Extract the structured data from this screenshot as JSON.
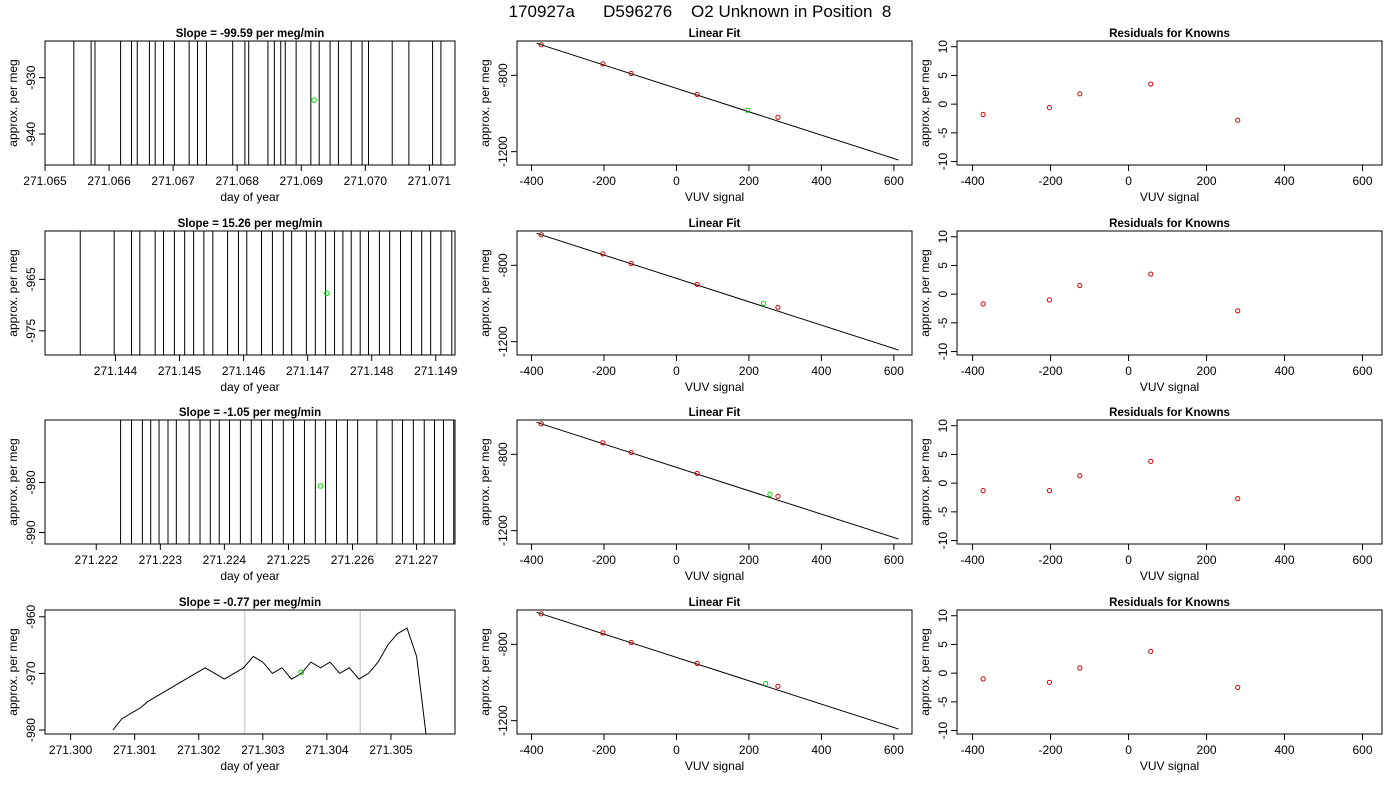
{
  "title": "170927a      D596276    O2 Unknown in Position  8",
  "colors": {
    "line": "#000000",
    "known_points": "#cc0000",
    "unknown_point": "#00dd00",
    "marker_lines": "#bbbbbb"
  },
  "chart_data": [
    {
      "type": "line",
      "row": 0,
      "panel": "time-series",
      "title": "Slope =  -99.59  per meg/min",
      "xlabel": "day of year",
      "ylabel": "approx. per meg",
      "xlim": [
        271.065,
        271.0714
      ],
      "ylim": [
        -945.5,
        -923.5
      ],
      "xticks": [
        271.065,
        271.066,
        271.067,
        271.068,
        271.069,
        271.07,
        271.071
      ],
      "xtick_labels": [
        "271.065",
        "271.066",
        "271.067",
        "271.068",
        "271.069",
        "271.070",
        "271.071"
      ],
      "yticks": [
        -940,
        -930
      ],
      "ytick_labels": [
        "-940",
        "-930"
      ],
      "signal": "vertical-spikes",
      "spike_x": [
        271.06545,
        271.06572,
        271.06578,
        271.06618,
        271.06635,
        271.06644,
        271.06663,
        271.06672,
        271.06685,
        271.06702,
        271.06725,
        271.06738,
        271.06752,
        271.06793,
        271.06812,
        271.06818,
        271.06848,
        271.06858,
        271.06868,
        271.06875,
        271.06892,
        271.06915,
        271.06928,
        271.06945,
        271.06958,
        271.06978,
        271.06995,
        271.07005,
        271.07042,
        271.07068,
        271.07105,
        271.07118
      ],
      "unknown_point": {
        "x": 271.0692,
        "y": -934.0
      }
    },
    {
      "type": "scatter",
      "row": 0,
      "panel": "linear-fit",
      "title": "Linear Fit",
      "xlabel": "VUV signal",
      "ylabel": "approx. per meg",
      "xlim": [
        -440,
        650
      ],
      "ylim": [
        -1270,
        -620
      ],
      "xticks": [
        -400,
        -200,
        0,
        200,
        400,
        600
      ],
      "xtick_labels": [
        "-400",
        "-200",
        "0",
        "200",
        "400",
        "600"
      ],
      "yticks": [
        -1200,
        -800
      ],
      "ytick_labels": [
        "-1200",
        "-800"
      ],
      "known_x": [
        -373,
        -203,
        -125,
        57,
        280
      ],
      "known_y": [
        -640,
        -740,
        -790,
        -900,
        -1020
      ],
      "unknown_point": {
        "x": 196,
        "y": -983
      },
      "fit_line": {
        "x": [
          -386,
          613
        ],
        "y": [
          -632,
          -1244
        ]
      }
    },
    {
      "type": "scatter",
      "row": 0,
      "panel": "residuals",
      "title": "Residuals for Knowns",
      "xlabel": "VUV signal",
      "ylabel": "approx. per meg",
      "xlim": [
        -440,
        650
      ],
      "ylim": [
        -10.6,
        11
      ],
      "xticks": [
        -400,
        -200,
        0,
        200,
        400,
        600
      ],
      "xtick_labels": [
        "-400",
        "-200",
        "0",
        "200",
        "400",
        "600"
      ],
      "yticks": [
        -10,
        -5,
        0,
        5,
        10
      ],
      "ytick_labels": [
        "-10",
        "-5",
        "0",
        "5",
        "10"
      ],
      "x": [
        -373,
        -203,
        -125,
        57,
        280
      ],
      "y": [
        -1.8,
        -0.6,
        1.8,
        3.5,
        -2.8
      ]
    },
    {
      "type": "line",
      "row": 1,
      "panel": "time-series",
      "title": "Slope =  15.26  per meg/min",
      "xlabel": "day of year",
      "ylabel": "approx. per meg",
      "xlim": [
        271.1429,
        271.1493
      ],
      "ylim": [
        -979.7,
        -955.6
      ],
      "xticks": [
        271.144,
        271.145,
        271.146,
        271.147,
        271.148,
        271.149
      ],
      "xtick_labels": [
        "271.144",
        "271.145",
        "271.146",
        "271.147",
        "271.148",
        "271.149"
      ],
      "yticks": [
        -975,
        -965
      ],
      "ytick_labels": [
        "-975",
        "-965"
      ],
      "signal": "vertical-spikes",
      "spike_x": [
        271.14345,
        271.14398,
        271.14425,
        271.14438,
        271.14462,
        271.14475,
        271.14492,
        271.14508,
        271.14522,
        271.14538,
        271.14552,
        271.14575,
        271.14592,
        271.14605,
        271.14628,
        271.14645,
        271.14662,
        271.14675,
        271.14698,
        271.14712,
        271.14728,
        271.14742,
        271.14755,
        271.14768,
        271.14782,
        271.14795,
        271.14812,
        271.14828,
        271.14845,
        271.14862,
        271.14878,
        271.14892,
        271.14908,
        271.14925,
        271.14942
      ],
      "unknown_point": {
        "x": 271.1473,
        "y": -967.7
      }
    },
    {
      "type": "scatter",
      "row": 1,
      "panel": "linear-fit",
      "title": "Linear Fit",
      "xlabel": "VUV signal",
      "ylabel": "approx. per meg",
      "xlim": [
        -440,
        650
      ],
      "ylim": [
        -1270,
        -620
      ],
      "xticks": [
        -400,
        -200,
        0,
        200,
        400,
        600
      ],
      "xtick_labels": [
        "-400",
        "-200",
        "0",
        "200",
        "400",
        "600"
      ],
      "yticks": [
        -1200,
        -800
      ],
      "ytick_labels": [
        "-1200",
        "-800"
      ],
      "known_x": [
        -373,
        -203,
        -125,
        57,
        280
      ],
      "known_y": [
        -640,
        -740,
        -790,
        -900,
        -1020
      ],
      "unknown_point": {
        "x": 240,
        "y": -1000
      },
      "fit_line": {
        "x": [
          -386,
          613
        ],
        "y": [
          -632,
          -1244
        ]
      }
    },
    {
      "type": "scatter",
      "row": 1,
      "panel": "residuals",
      "title": "Residuals for Knowns",
      "xlabel": "VUV signal",
      "ylabel": "approx. per meg",
      "xlim": [
        -440,
        650
      ],
      "ylim": [
        -10.6,
        11
      ],
      "xticks": [
        -400,
        -200,
        0,
        200,
        400,
        600
      ],
      "xtick_labels": [
        "-400",
        "-200",
        "0",
        "200",
        "400",
        "600"
      ],
      "yticks": [
        -10,
        -5,
        0,
        5,
        10
      ],
      "ytick_labels": [
        "-10",
        "-5",
        "0",
        "5",
        "10"
      ],
      "x": [
        -373,
        -203,
        -125,
        57,
        280
      ],
      "y": [
        -1.7,
        -1.0,
        1.5,
        3.5,
        -2.9
      ]
    },
    {
      "type": "line",
      "row": 2,
      "panel": "time-series",
      "title": "Slope =  -1.05  per meg/min",
      "xlabel": "day of year",
      "ylabel": "approx. per meg",
      "xlim": [
        271.2212,
        271.2276
      ],
      "ylim": [
        -992.3,
        -967.5
      ],
      "xticks": [
        271.222,
        271.223,
        271.224,
        271.225,
        271.226,
        271.227
      ],
      "xtick_labels": [
        "271.222",
        "271.223",
        "271.224",
        "271.225",
        "271.226",
        "271.227"
      ],
      "yticks": [
        -990,
        -980
      ],
      "ytick_labels": [
        "-990",
        "-980"
      ],
      "signal": "vertical-spikes",
      "spike_x": [
        271.22238,
        271.22255,
        271.22272,
        271.22285,
        271.22298,
        271.22312,
        271.22325,
        271.22345,
        271.22362,
        271.22378,
        271.22392,
        271.22408,
        271.22425,
        271.22442,
        271.22458,
        271.22475,
        271.22492,
        271.22508,
        271.22525,
        271.22542,
        271.22558,
        271.22575,
        271.22592,
        271.22608,
        271.22638,
        271.22662,
        271.22678,
        271.22695,
        271.22712,
        271.22728,
        271.22742,
        271.22758
      ],
      "unknown_point": {
        "x": 271.2255,
        "y": -980.7
      }
    },
    {
      "type": "scatter",
      "row": 2,
      "panel": "linear-fit",
      "title": "Linear Fit",
      "xlabel": "VUV signal",
      "ylabel": "approx. per meg",
      "xlim": [
        -440,
        650
      ],
      "ylim": [
        -1270,
        -620
      ],
      "xticks": [
        -400,
        -200,
        0,
        200,
        400,
        600
      ],
      "xtick_labels": [
        "-400",
        "-200",
        "0",
        "200",
        "400",
        "600"
      ],
      "yticks": [
        -1200,
        -800
      ],
      "ytick_labels": [
        "-1200",
        "-800"
      ],
      "known_x": [
        -373,
        -203,
        -125,
        57,
        280
      ],
      "known_y": [
        -640,
        -740,
        -790,
        -900,
        -1020
      ],
      "unknown_point": {
        "x": 258,
        "y": -1010
      },
      "fit_line": {
        "x": [
          -386,
          613
        ],
        "y": [
          -632,
          -1244
        ]
      }
    },
    {
      "type": "scatter",
      "row": 2,
      "panel": "residuals",
      "title": "Residuals for Knowns",
      "xlabel": "VUV signal",
      "ylabel": "approx. per meg",
      "xlim": [
        -440,
        650
      ],
      "ylim": [
        -10.6,
        11
      ],
      "xticks": [
        -400,
        -200,
        0,
        200,
        400,
        600
      ],
      "xtick_labels": [
        "-400",
        "-200",
        "0",
        "200",
        "400",
        "600"
      ],
      "yticks": [
        -10,
        -5,
        0,
        5,
        10
      ],
      "ytick_labels": [
        "-10",
        "-5",
        "0",
        "5",
        "10"
      ],
      "x": [
        -373,
        -203,
        -125,
        57,
        280
      ],
      "y": [
        -1.3,
        -1.3,
        1.3,
        3.8,
        -2.7
      ]
    },
    {
      "type": "line",
      "row": 3,
      "panel": "time-series",
      "title": "Slope =  -0.77  per meg/min",
      "xlabel": "day of year",
      "ylabel": "approx. per meg",
      "xlim": [
        271.2996,
        271.306
      ],
      "ylim": [
        -980.7,
        -958.8
      ],
      "xticks": [
        271.3,
        271.301,
        271.302,
        271.303,
        271.304,
        271.305
      ],
      "xtick_labels": [
        "271.300",
        "271.301",
        "271.302",
        "271.303",
        "271.304",
        "271.305"
      ],
      "yticks": [
        -980,
        -970,
        -960
      ],
      "ytick_labels": [
        "-980",
        "-970",
        "-960"
      ],
      "signal": "continuous",
      "series_x": [
        271.30066,
        271.3008,
        271.30095,
        271.3011,
        271.3012,
        271.30135,
        271.3015,
        271.30165,
        271.3018,
        271.30195,
        271.3021,
        271.30225,
        271.3024,
        271.30255,
        271.3027,
        271.30285,
        271.303,
        271.30315,
        271.3033,
        271.30345,
        271.3036,
        271.30375,
        271.3039,
        271.30405,
        271.3042,
        271.30435,
        271.3045,
        271.30465,
        271.3048,
        271.30495,
        271.3051,
        271.30525,
        271.3054,
        271.30555
      ],
      "series_y": [
        -980,
        -978,
        -977,
        -976,
        -975,
        -974,
        -973,
        -972,
        -971,
        -970,
        -969,
        -970,
        -971,
        -970,
        -969,
        -967,
        -968,
        -970,
        -969,
        -971,
        -970,
        -968,
        -969,
        -968,
        -970,
        -969,
        -971,
        -970,
        -968,
        -965,
        -963,
        -962,
        -967,
        -981
      ],
      "unknown_point": {
        "x": 271.3036,
        "y": -969.8
      },
      "marker_lines_x": [
        271.30272,
        271.30452
      ]
    },
    {
      "type": "scatter",
      "row": 3,
      "panel": "linear-fit",
      "title": "Linear Fit",
      "xlabel": "VUV signal",
      "ylabel": "approx. per meg",
      "xlim": [
        -440,
        650
      ],
      "ylim": [
        -1270,
        -620
      ],
      "xticks": [
        -400,
        -200,
        0,
        200,
        400,
        600
      ],
      "xtick_labels": [
        "-400",
        "-200",
        "0",
        "200",
        "400",
        "600"
      ],
      "yticks": [
        -1200,
        -800
      ],
      "ytick_labels": [
        "-1200",
        "-800"
      ],
      "known_x": [
        -373,
        -203,
        -125,
        57,
        280
      ],
      "known_y": [
        -640,
        -740,
        -790,
        -900,
        -1020
      ],
      "unknown_point": {
        "x": 246,
        "y": -1005
      },
      "fit_line": {
        "x": [
          -386,
          613
        ],
        "y": [
          -632,
          -1244
        ]
      }
    },
    {
      "type": "scatter",
      "row": 3,
      "panel": "residuals",
      "title": "Residuals for Knowns",
      "xlabel": "VUV signal",
      "ylabel": "approx. per meg",
      "xlim": [
        -440,
        650
      ],
      "ylim": [
        -10.6,
        11
      ],
      "xticks": [
        -400,
        -200,
        0,
        200,
        400,
        600
      ],
      "xtick_labels": [
        "-400",
        "-200",
        "0",
        "200",
        "400",
        "600"
      ],
      "yticks": [
        -10,
        -5,
        0,
        5,
        10
      ],
      "ytick_labels": [
        "-10",
        "-5",
        "0",
        "5",
        "10"
      ],
      "x": [
        -373,
        -203,
        -125,
        57,
        280
      ],
      "y": [
        -1.0,
        -1.6,
        0.9,
        3.8,
        -2.5
      ]
    }
  ]
}
